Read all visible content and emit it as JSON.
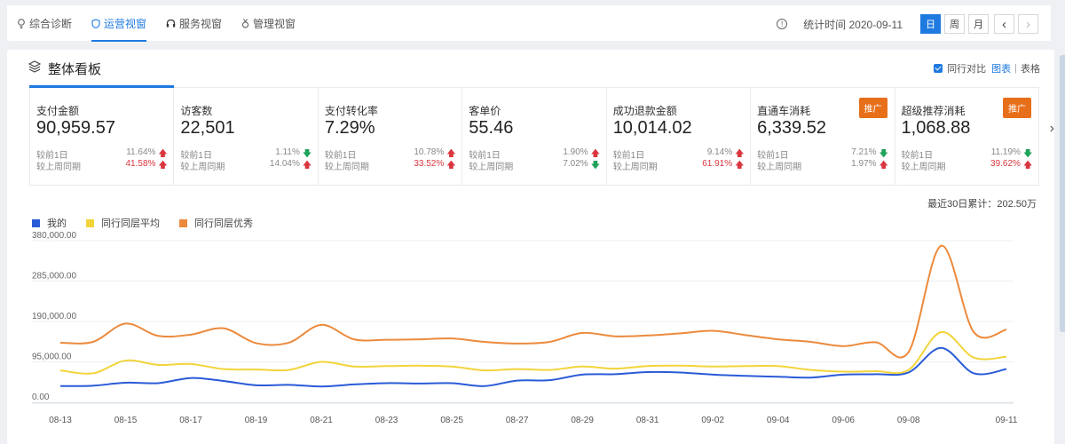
{
  "nav": {
    "tabs": [
      {
        "label": "综合诊断",
        "icon": "bulb-icon",
        "active": false
      },
      {
        "label": "运营视窗",
        "icon": "shield-icon",
        "active": true
      },
      {
        "label": "服务视窗",
        "icon": "headset-icon",
        "active": false
      },
      {
        "label": "管理视窗",
        "icon": "medal-icon",
        "active": false
      }
    ],
    "info_icon": "!",
    "stat_time": "统计时间 2020-09-11",
    "period_buttons": [
      "日",
      "周",
      "月"
    ],
    "prev": "‹",
    "next": "›"
  },
  "panel": {
    "title": "整体看板",
    "compare_label": "同行对比",
    "compare_checked": true,
    "view_chart": "图表",
    "separator": "|",
    "view_table": "表格"
  },
  "cards": [
    {
      "label": "支付金额",
      "value": "90,959.57",
      "badge": "",
      "d1_label": "较前1日",
      "d1": "11.64%",
      "d1_dir": "up",
      "w_label": "较上周同期",
      "w": "41.58%",
      "w_dir": "up"
    },
    {
      "label": "访客数",
      "value": "22,501",
      "badge": "",
      "d1_label": "较前1日",
      "d1": "1.11%",
      "d1_dir": "down",
      "w_label": "较上周同期",
      "w": "14.04%",
      "w_dir": "up"
    },
    {
      "label": "支付转化率",
      "value": "7.29%",
      "badge": "",
      "d1_label": "较前1日",
      "d1": "10.78%",
      "d1_dir": "up",
      "w_label": "较上周同期",
      "w": "33.52%",
      "w_dir": "up"
    },
    {
      "label": "客单价",
      "value": "55.46",
      "badge": "",
      "d1_label": "较前1日",
      "d1": "1.90%",
      "d1_dir": "up",
      "w_label": "较上周同期",
      "w": "7.02%",
      "w_dir": "down"
    },
    {
      "label": "成功退款金额",
      "value": "10,014.02",
      "badge": "",
      "d1_label": "较前1日",
      "d1": "9.14%",
      "d1_dir": "up",
      "w_label": "较上周同期",
      "w": "61.91%",
      "w_dir": "up"
    },
    {
      "label": "直通车消耗",
      "value": "6,339.52",
      "badge": "推广",
      "d1_label": "较前1日",
      "d1": "7.21%",
      "d1_dir": "down",
      "w_label": "较上周同期",
      "w": "1.97%",
      "w_dir": "up"
    },
    {
      "label": "超级推荐消耗",
      "value": "1,068.88",
      "badge": "推广",
      "d1_label": "较前1日",
      "d1": "11.19%",
      "d1_dir": "down",
      "w_label": "较上周同期",
      "w": "39.62%",
      "w_dir": "up"
    }
  ],
  "summary": "最近30日累计：202.50万",
  "colors": {
    "accent": "#1f7ae0",
    "mine": "#2a5bd7",
    "avg": "#f2d43a",
    "top": "#ec8a3c",
    "up": "#d9363e",
    "down": "#1ea35a",
    "badge": "#e86f1a"
  },
  "chart_data": {
    "type": "line",
    "x": [
      "08-13",
      "08-14",
      "08-15",
      "08-16",
      "08-17",
      "08-18",
      "08-19",
      "08-20",
      "08-21",
      "08-22",
      "08-23",
      "08-24",
      "08-25",
      "08-26",
      "08-27",
      "08-28",
      "08-29",
      "08-30",
      "08-31",
      "09-01",
      "09-02",
      "09-03",
      "09-04",
      "09-05",
      "09-06",
      "09-07",
      "09-08",
      "09-09",
      "09-10",
      "09-11"
    ],
    "tick_labels": [
      "08-13",
      "08-15",
      "08-17",
      "08-19",
      "08-21",
      "08-23",
      "08-25",
      "08-27",
      "08-29",
      "08-31",
      "09-02",
      "09-04",
      "09-06",
      "09-08",
      "09-11"
    ],
    "y_ticks": [
      "380,000.00",
      "285,000.00",
      "190,000.00",
      "95,000.00",
      "0.00"
    ],
    "ylim": [
      0,
      380000
    ],
    "series": [
      {
        "name": "我的",
        "color": "#2a5bd7",
        "values": [
          38000,
          39000,
          46000,
          45000,
          57000,
          50000,
          40000,
          41000,
          37000,
          42000,
          45000,
          44000,
          45000,
          38000,
          51000,
          52000,
          65000,
          66000,
          71000,
          70000,
          65000,
          62000,
          60000,
          58000,
          65000,
          66000,
          70000,
          128000,
          68000,
          78000
        ]
      },
      {
        "name": "同行同层平均",
        "color": "#f2d43a",
        "values": [
          75000,
          68000,
          98000,
          88000,
          90000,
          78000,
          77000,
          76000,
          95000,
          84000,
          85000,
          86000,
          84000,
          75000,
          78000,
          76000,
          84000,
          79000,
          85000,
          86000,
          84000,
          85000,
          85000,
          76000,
          72000,
          73000,
          76000,
          165000,
          105000,
          107000
        ]
      },
      {
        "name": "同行同层优秀",
        "color": "#ec8a3c",
        "values": [
          140000,
          142000,
          185000,
          156000,
          159000,
          174000,
          139000,
          140000,
          182000,
          148000,
          147000,
          148000,
          150000,
          142000,
          138000,
          142000,
          163000,
          155000,
          157000,
          162000,
          168000,
          158000,
          148000,
          142000,
          132000,
          141000,
          118000,
          368000,
          165000,
          171000
        ]
      }
    ]
  }
}
